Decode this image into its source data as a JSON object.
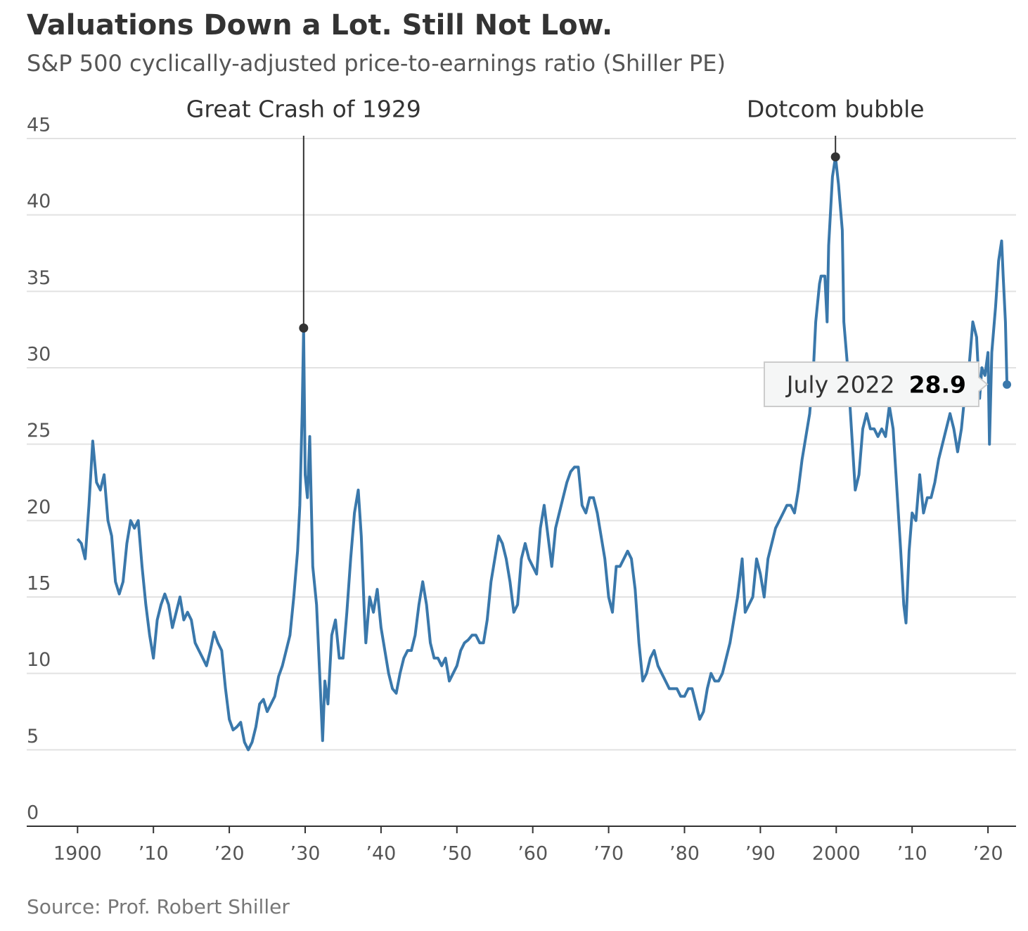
{
  "chart_data": {
    "type": "line",
    "title": "Valuations Down a Lot. Still Not Low.",
    "subtitle": "S&P 500 cyclically-adjusted price-to-earnings ratio (Shiller PE)",
    "source": "Source: Prof. Robert Shiller",
    "color": "#3a78ab",
    "grid": true,
    "xlim": [
      1893.3,
      2023.7
    ],
    "ylim": [
      0,
      45
    ],
    "yticks": [
      0,
      5,
      10,
      15,
      20,
      25,
      30,
      35,
      40,
      45
    ],
    "xticks": [
      {
        "value": 1900,
        "label": "1900"
      },
      {
        "value": 1910,
        "label": "’10"
      },
      {
        "value": 1920,
        "label": "’20"
      },
      {
        "value": 1930,
        "label": "’30"
      },
      {
        "value": 1940,
        "label": "’40"
      },
      {
        "value": 1950,
        "label": "’50"
      },
      {
        "value": 1960,
        "label": "’60"
      },
      {
        "value": 1970,
        "label": "’70"
      },
      {
        "value": 1980,
        "label": "’80"
      },
      {
        "value": 1990,
        "label": "’90"
      },
      {
        "value": 2000,
        "label": "2000"
      },
      {
        "value": 2010,
        "label": "’10"
      },
      {
        "value": 2020,
        "label": "’20"
      }
    ],
    "annotations": [
      {
        "text": "Great Crash of 1929",
        "x": 1929.8,
        "y": 32.6
      },
      {
        "text": "Dotcom bubble",
        "x": 1999.9,
        "y": 43.8
      }
    ],
    "tooltip": {
      "label": "July 2022",
      "value": 28.9
    },
    "x": [
      1900,
      1900.5,
      1901,
      1901.5,
      1902,
      1902.5,
      1903,
      1903.5,
      1904,
      1904.5,
      1905,
      1905.5,
      1906,
      1906.5,
      1907,
      1907.5,
      1908,
      1908.5,
      1909,
      1909.5,
      1910,
      1910.5,
      1911,
      1911.5,
      1912,
      1912.5,
      1913,
      1913.5,
      1914,
      1914.5,
      1915,
      1915.5,
      1916,
      1916.5,
      1917,
      1917.5,
      1918,
      1918.5,
      1919,
      1919.5,
      1920,
      1920.5,
      1921,
      1921.5,
      1922,
      1922.5,
      1923,
      1923.5,
      1924,
      1924.5,
      1925,
      1925.5,
      1926,
      1926.5,
      1927,
      1927.5,
      1928,
      1928.5,
      1929,
      1929.3,
      1929.6,
      1929.8,
      1930,
      1930.3,
      1930.6,
      1931,
      1931.5,
      1932,
      1932.3,
      1932.6,
      1933,
      1933.5,
      1934,
      1934.5,
      1935,
      1935.5,
      1936,
      1936.5,
      1937,
      1937.4,
      1937.8,
      1938,
      1938.5,
      1939,
      1939.5,
      1940,
      1940.5,
      1941,
      1941.5,
      1942,
      1942.5,
      1943,
      1943.5,
      1944,
      1944.5,
      1945,
      1945.5,
      1946,
      1946.5,
      1947,
      1947.5,
      1948,
      1948.5,
      1949,
      1949.5,
      1950,
      1950.5,
      1951,
      1951.5,
      1952,
      1952.5,
      1953,
      1953.5,
      1954,
      1954.5,
      1955,
      1955.5,
      1956,
      1956.5,
      1957,
      1957.5,
      1958,
      1958.5,
      1959,
      1959.5,
      1960,
      1960.5,
      1961,
      1961.5,
      1962,
      1962.5,
      1963,
      1963.5,
      1964,
      1964.5,
      1965,
      1965.5,
      1966,
      1966.5,
      1967,
      1967.5,
      1968,
      1968.5,
      1969,
      1969.5,
      1970,
      1970.5,
      1971,
      1971.5,
      1972,
      1972.5,
      1973,
      1973.5,
      1974,
      1974.5,
      1975,
      1975.5,
      1976,
      1976.5,
      1977,
      1977.5,
      1978,
      1978.5,
      1979,
      1979.5,
      1980,
      1980.5,
      1981,
      1981.5,
      1982,
      1982.5,
      1983,
      1983.5,
      1984,
      1984.5,
      1985,
      1985.5,
      1986,
      1986.5,
      1987,
      1987.6,
      1988,
      1988.5,
      1989,
      1989.5,
      1990,
      1990.5,
      1991,
      1991.5,
      1992,
      1992.5,
      1993,
      1993.5,
      1994,
      1994.5,
      1995,
      1995.5,
      1996,
      1996.5,
      1997,
      1997.3,
      1997.8,
      1998,
      1998.5,
      1998.8,
      1999,
      1999.5,
      1999.9,
      2000.3,
      2000.8,
      2001,
      2001.5,
      2002,
      2002.5,
      2003,
      2003.5,
      2004,
      2004.5,
      2005,
      2005.5,
      2006,
      2006.5,
      2007,
      2007.5,
      2008,
      2008.5,
      2008.9,
      2009.2,
      2009.6,
      2010,
      2010.5,
      2011,
      2011.5,
      2012,
      2012.5,
      2013,
      2013.5,
      2014,
      2014.5,
      2015,
      2015.5,
      2016,
      2016.5,
      2017,
      2017.5,
      2018,
      2018.5,
      2018.9,
      2019.2,
      2019.6,
      2020,
      2020.2,
      2020.5,
      2021,
      2021.4,
      2021.8,
      2022,
      2022.3,
      2022.5
    ],
    "values": [
      18.8,
      18.5,
      17.5,
      21,
      25.2,
      22.5,
      22,
      23,
      20,
      19,
      16,
      15.2,
      16,
      18.5,
      20,
      19.5,
      20,
      17,
      14.5,
      12.5,
      11,
      13.5,
      14.5,
      15.2,
      14.5,
      13,
      14,
      15,
      13.5,
      14,
      13.5,
      12,
      11.5,
      11,
      10.5,
      11.5,
      12.7,
      12,
      11.5,
      9,
      7,
      6.3,
      6.5,
      6.8,
      5.5,
      5,
      5.5,
      6.5,
      8,
      8.3,
      7.5,
      8,
      8.5,
      9.8,
      10.5,
      11.5,
      12.5,
      15,
      18,
      21,
      27,
      32.6,
      23,
      21.5,
      25.5,
      17,
      14.5,
      9,
      5.6,
      9.5,
      8,
      12.5,
      13.5,
      11,
      11,
      14,
      17.5,
      20.5,
      22,
      19,
      14,
      12,
      15,
      14,
      15.5,
      13,
      11.5,
      10,
      9,
      8.7,
      10,
      11,
      11.5,
      11.5,
      12.5,
      14.5,
      16,
      14.5,
      12,
      11,
      11,
      10.5,
      11,
      9.5,
      10,
      10.5,
      11.5,
      12,
      12.2,
      12.5,
      12.5,
      12,
      12,
      13.5,
      16,
      17.5,
      19,
      18.5,
      17.5,
      16,
      14,
      14.5,
      17.5,
      18.5,
      17.5,
      17,
      16.5,
      19.5,
      21,
      19,
      17,
      19.5,
      20.5,
      21.5,
      22.5,
      23.2,
      23.5,
      23.5,
      21,
      20.5,
      21.5,
      21.5,
      20.5,
      19,
      17.5,
      15,
      14,
      17,
      17,
      17.5,
      18,
      17.5,
      15.5,
      12,
      9.5,
      10,
      11,
      11.5,
      10.5,
      10,
      9.5,
      9,
      9,
      9,
      8.5,
      8.5,
      9,
      9,
      8,
      7,
      7.5,
      9,
      10,
      9.5,
      9.5,
      10,
      11,
      12,
      13.5,
      15,
      17.5,
      14,
      14.5,
      15,
      17.5,
      16.5,
      15,
      17.5,
      18.5,
      19.5,
      20,
      20.5,
      21,
      21,
      20.5,
      22,
      24,
      25.5,
      27,
      30,
      33,
      35.5,
      36,
      36,
      33,
      38,
      42.5,
      43.8,
      42,
      39,
      33,
      30,
      26,
      22,
      23,
      26,
      27,
      26,
      26,
      25.5,
      26,
      25.5,
      27.5,
      26,
      22,
      18,
      14.5,
      13.3,
      18,
      20.5,
      20,
      23,
      20.5,
      21.5,
      21.5,
      22.5,
      24,
      25,
      26,
      27,
      26,
      24.5,
      26,
      28.5,
      30,
      33,
      32,
      28,
      30,
      29.5,
      31,
      25,
      31,
      34,
      37,
      38.3,
      36,
      33,
      28.9
    ]
  }
}
